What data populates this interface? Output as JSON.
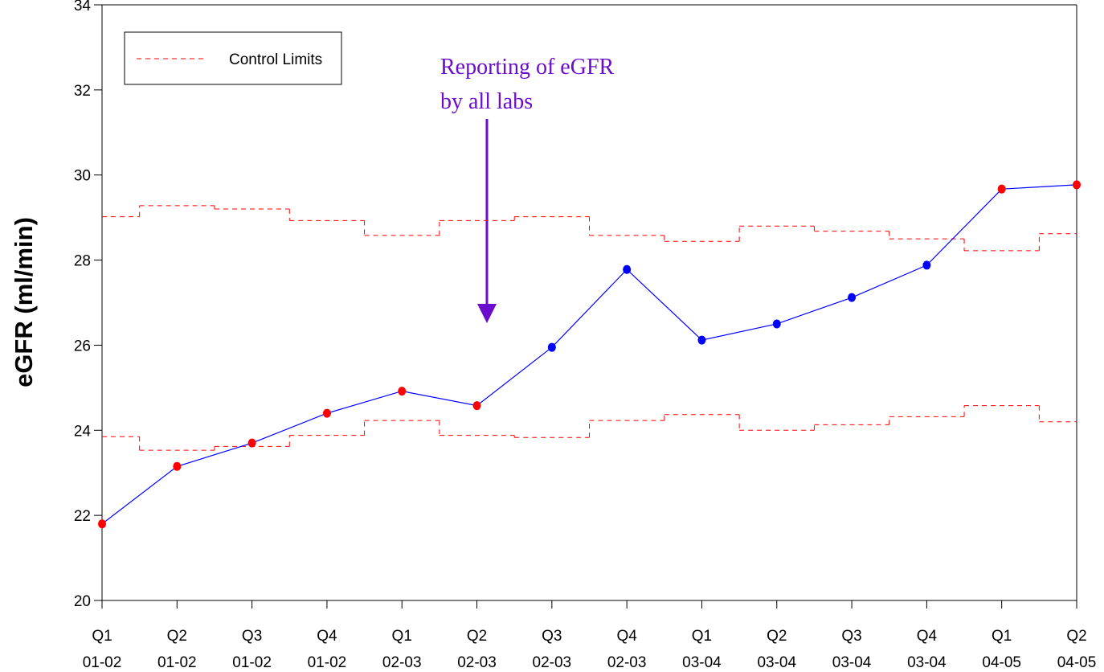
{
  "chart_data": {
    "type": "line",
    "ylabel": "eGFR (ml/min)",
    "annotation": [
      "Reporting of eGFR",
      "by all labs"
    ],
    "categories": [
      [
        "Q1",
        "01-02"
      ],
      [
        "Q2",
        "01-02"
      ],
      [
        "Q3",
        "01-02"
      ],
      [
        "Q4",
        "01-02"
      ],
      [
        "Q1",
        "02-03"
      ],
      [
        "Q2",
        "02-03"
      ],
      [
        "Q3",
        "02-03"
      ],
      [
        "Q4",
        "02-03"
      ],
      [
        "Q1",
        "03-04"
      ],
      [
        "Q2",
        "03-04"
      ],
      [
        "Q3",
        "03-04"
      ],
      [
        "Q4",
        "03-04"
      ],
      [
        "Q1",
        "04-05"
      ],
      [
        "Q2",
        "04-05"
      ]
    ],
    "series": [
      {
        "color": "#0000ff",
        "values": [
          21.8,
          23.15,
          23.7,
          24.4,
          24.92,
          24.58,
          25.95,
          27.78,
          26.12,
          26.5,
          27.12,
          27.88,
          29.67,
          29.77
        ],
        "marker_colors": [
          "#ff0000",
          "#ff0000",
          "#ff0000",
          "#ff0000",
          "#ff0000",
          "#ff0000",
          "#0000ff",
          "#0000ff",
          "#0000ff",
          "#0000ff",
          "#0000ff",
          "#0000ff",
          "#ff0000",
          "#ff0000"
        ]
      }
    ],
    "control_limits": {
      "name": "Control Limits",
      "color": "#ff0000",
      "upper": [
        29.02,
        29.28,
        29.2,
        28.93,
        28.58,
        28.93,
        29.02,
        28.58,
        28.44,
        28.8,
        28.68,
        28.5,
        28.22,
        28.62
      ],
      "lower": [
        23.85,
        23.53,
        23.62,
        23.88,
        24.23,
        23.88,
        23.83,
        24.23,
        24.37,
        24.0,
        24.13,
        24.32,
        24.58,
        24.2
      ]
    },
    "ylim": [
      20,
      34
    ],
    "yticks": [
      20,
      22,
      24,
      26,
      28,
      30,
      32,
      34
    ]
  }
}
